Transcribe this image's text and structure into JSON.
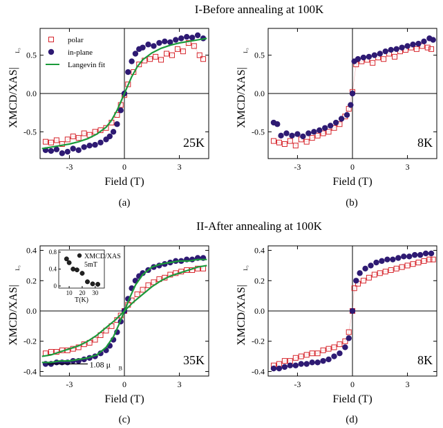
{
  "sections": [
    {
      "title": "I-Before annealing at 100K"
    },
    {
      "title": "II-After annealing at 100K"
    }
  ],
  "colors": {
    "polar": "#d6232a",
    "inplane": "#2e1a73",
    "fit": "#1a9a3a",
    "axis": "#000000"
  },
  "chart_data": [
    {
      "type": "scatter",
      "caption": "(a)",
      "temperature_label": "25K",
      "xlabel": "Field (T)",
      "ylabel": "XMCD/XAS|",
      "ylabel_sub": "L₃",
      "xlim": [
        -4.6,
        4.6
      ],
      "ylim": [
        -0.85,
        0.85
      ],
      "xticks": [
        -3,
        0,
        3
      ],
      "xtick_labels": [
        "-3",
        "0",
        "3"
      ],
      "yticks": [
        -0.5,
        0.0,
        0.5
      ],
      "ytick_labels": [
        "-0.5",
        "0.0",
        "0.5"
      ],
      "legend": {
        "position": "top-left",
        "entries": [
          "polar",
          "in-plane",
          "Langevin fit"
        ]
      },
      "series": [
        {
          "name": "polar",
          "marker": "open-square",
          "color": "#d6232a",
          "x": [
            -4.3,
            -4.0,
            -3.7,
            -3.4,
            -3.1,
            -2.8,
            -2.5,
            -2.2,
            -1.9,
            -1.6,
            -1.3,
            -1.0,
            -0.7,
            -0.4,
            -0.2,
            0.0,
            0.2,
            0.5,
            0.8,
            1.1,
            1.4,
            1.7,
            2.0,
            2.3,
            2.6,
            2.9,
            3.2,
            3.5,
            3.8,
            4.1,
            4.3
          ],
          "y": [
            -0.63,
            -0.64,
            -0.61,
            -0.66,
            -0.6,
            -0.56,
            -0.58,
            -0.52,
            -0.54,
            -0.5,
            -0.48,
            -0.45,
            -0.38,
            -0.28,
            -0.15,
            -0.02,
            0.12,
            0.28,
            0.38,
            0.43,
            0.45,
            0.48,
            0.44,
            0.52,
            0.5,
            0.58,
            0.55,
            0.66,
            0.62,
            0.5,
            0.45
          ]
        },
        {
          "name": "in-plane",
          "marker": "filled-circle",
          "color": "#2e1a73",
          "x": [
            -4.3,
            -4.0,
            -3.7,
            -3.4,
            -3.1,
            -2.8,
            -2.5,
            -2.2,
            -1.9,
            -1.6,
            -1.3,
            -1.0,
            -0.8,
            -0.6,
            -0.4,
            -0.2,
            0.0,
            0.2,
            0.4,
            0.6,
            0.8,
            1.0,
            1.3,
            1.6,
            1.9,
            2.2,
            2.5,
            2.8,
            3.1,
            3.4,
            3.7,
            4.0,
            4.3
          ],
          "y": [
            -0.74,
            -0.75,
            -0.73,
            -0.78,
            -0.76,
            -0.72,
            -0.74,
            -0.7,
            -0.68,
            -0.67,
            -0.64,
            -0.6,
            -0.56,
            -0.5,
            -0.4,
            -0.22,
            0.0,
            0.28,
            0.42,
            0.52,
            0.58,
            0.6,
            0.64,
            0.62,
            0.66,
            0.68,
            0.67,
            0.7,
            0.72,
            0.74,
            0.73,
            0.76,
            0.72
          ]
        },
        {
          "name": "Langevin fit",
          "marker": "line",
          "color": "#1a9a3a",
          "x": [
            -4.5,
            -4.0,
            -3.5,
            -3.0,
            -2.5,
            -2.0,
            -1.5,
            -1.0,
            -0.7,
            -0.4,
            -0.2,
            0.0,
            0.2,
            0.4,
            0.7,
            1.0,
            1.5,
            2.0,
            2.5,
            3.0,
            3.5,
            4.0,
            4.5
          ],
          "y": [
            -0.72,
            -0.7,
            -0.68,
            -0.66,
            -0.63,
            -0.59,
            -0.53,
            -0.44,
            -0.35,
            -0.22,
            -0.11,
            0.0,
            0.11,
            0.22,
            0.35,
            0.44,
            0.53,
            0.59,
            0.63,
            0.66,
            0.68,
            0.7,
            0.72
          ]
        }
      ]
    },
    {
      "type": "scatter",
      "caption": "(b)",
      "temperature_label": "8K",
      "xlabel": "Field (T)",
      "ylabel": "XMCD/XAS|",
      "ylabel_sub": "L₃",
      "xlim": [
        -4.6,
        4.6
      ],
      "ylim": [
        -0.85,
        0.85
      ],
      "xticks": [
        -3,
        0,
        3
      ],
      "xtick_labels": [
        "-3",
        "0",
        "3"
      ],
      "yticks": [
        -0.5,
        0.0,
        0.5
      ],
      "ytick_labels": [
        "-0.5",
        "0.0",
        "0.5"
      ],
      "series": [
        {
          "name": "polar",
          "marker": "open-square",
          "color": "#d6232a",
          "x": [
            -4.3,
            -4.0,
            -3.7,
            -3.4,
            -3.1,
            -2.8,
            -2.5,
            -2.2,
            -1.9,
            -1.6,
            -1.3,
            -1.0,
            -0.7,
            -0.4,
            -0.2,
            0.0,
            0.2,
            0.5,
            0.8,
            1.1,
            1.4,
            1.7,
            2.0,
            2.3,
            2.6,
            2.9,
            3.2,
            3.5,
            3.8,
            4.1,
            4.3
          ],
          "y": [
            -0.62,
            -0.64,
            -0.66,
            -0.62,
            -0.68,
            -0.6,
            -0.63,
            -0.58,
            -0.55,
            -0.52,
            -0.5,
            -0.45,
            -0.4,
            -0.3,
            -0.2,
            0.02,
            0.38,
            0.42,
            0.44,
            0.4,
            0.47,
            0.45,
            0.52,
            0.48,
            0.55,
            0.57,
            0.6,
            0.58,
            0.62,
            0.6,
            0.58
          ]
        },
        {
          "name": "in-plane",
          "marker": "filled-circle",
          "color": "#2e1a73",
          "x": [
            -4.3,
            -4.1,
            -3.9,
            -3.6,
            -3.3,
            -3.0,
            -2.7,
            -2.4,
            -2.1,
            -1.8,
            -1.5,
            -1.2,
            -0.9,
            -0.6,
            -0.3,
            -0.1,
            0.0,
            0.1,
            0.3,
            0.6,
            0.9,
            1.2,
            1.5,
            1.8,
            2.1,
            2.4,
            2.7,
            3.0,
            3.3,
            3.6,
            3.9,
            4.2,
            4.4
          ],
          "y": [
            -0.38,
            -0.4,
            -0.55,
            -0.52,
            -0.55,
            -0.53,
            -0.56,
            -0.52,
            -0.5,
            -0.48,
            -0.45,
            -0.42,
            -0.38,
            -0.33,
            -0.28,
            -0.15,
            0.0,
            0.42,
            0.45,
            0.47,
            0.48,
            0.5,
            0.52,
            0.55,
            0.57,
            0.58,
            0.6,
            0.62,
            0.64,
            0.65,
            0.68,
            0.72,
            0.7
          ]
        }
      ]
    },
    {
      "type": "scatter",
      "caption": "(c)",
      "temperature_label": "35K",
      "annotation": "1.08 μ",
      "annotation_sub": "B",
      "xlabel": "Field (T)",
      "ylabel": "XMCD/XAS|",
      "ylabel_sub": "L₃",
      "xlim": [
        -4.6,
        4.6
      ],
      "ylim": [
        -0.43,
        0.43
      ],
      "xticks": [
        -3,
        0,
        3
      ],
      "xtick_labels": [
        "-3",
        "0",
        "3"
      ],
      "yticks": [
        -0.4,
        -0.2,
        0.0,
        0.2,
        0.4
      ],
      "ytick_labels": [
        "-0.4",
        "-0.2",
        "0.0",
        "0.2",
        "0.4"
      ],
      "series": [
        {
          "name": "polar",
          "marker": "open-square",
          "color": "#d6232a",
          "x": [
            -4.3,
            -4.0,
            -3.7,
            -3.4,
            -3.1,
            -2.8,
            -2.5,
            -2.2,
            -1.9,
            -1.6,
            -1.3,
            -1.0,
            -0.7,
            -0.4,
            -0.2,
            0.0,
            0.2,
            0.4,
            0.7,
            1.0,
            1.3,
            1.6,
            1.9,
            2.2,
            2.5,
            2.8,
            3.1,
            3.4,
            3.7,
            4.0,
            4.3
          ],
          "y": [
            -0.28,
            -0.27,
            -0.27,
            -0.26,
            -0.26,
            -0.25,
            -0.24,
            -0.22,
            -0.21,
            -0.19,
            -0.16,
            -0.13,
            -0.1,
            -0.06,
            -0.03,
            0.0,
            0.04,
            0.07,
            0.11,
            0.14,
            0.17,
            0.19,
            0.21,
            0.22,
            0.24,
            0.25,
            0.26,
            0.27,
            0.27,
            0.28,
            0.28
          ]
        },
        {
          "name": "in-plane",
          "marker": "filled-circle",
          "color": "#2e1a73",
          "x": [
            -4.3,
            -4.0,
            -3.7,
            -3.4,
            -3.1,
            -2.8,
            -2.5,
            -2.2,
            -1.9,
            -1.6,
            -1.3,
            -1.0,
            -0.8,
            -0.6,
            -0.4,
            -0.2,
            0.0,
            0.2,
            0.4,
            0.6,
            0.8,
            1.0,
            1.3,
            1.6,
            1.9,
            2.2,
            2.5,
            2.8,
            3.1,
            3.4,
            3.7,
            4.0,
            4.3
          ],
          "y": [
            -0.35,
            -0.35,
            -0.34,
            -0.34,
            -0.34,
            -0.33,
            -0.33,
            -0.32,
            -0.31,
            -0.3,
            -0.28,
            -0.26,
            -0.23,
            -0.19,
            -0.14,
            -0.07,
            0.0,
            0.08,
            0.15,
            0.2,
            0.23,
            0.25,
            0.27,
            0.29,
            0.3,
            0.31,
            0.32,
            0.33,
            0.33,
            0.34,
            0.34,
            0.35,
            0.35
          ]
        },
        {
          "name": "fit-1",
          "marker": "line",
          "color": "#1a9a3a",
          "x": [
            -4.5,
            -4.0,
            -3.5,
            -3.0,
            -2.5,
            -2.0,
            -1.5,
            -1.0,
            -0.6,
            -0.3,
            0.0,
            0.3,
            0.6,
            1.0,
            1.5,
            2.0,
            2.5,
            3.0,
            3.5,
            4.0,
            4.5
          ],
          "y": [
            -0.34,
            -0.34,
            -0.33,
            -0.33,
            -0.32,
            -0.31,
            -0.29,
            -0.24,
            -0.17,
            -0.09,
            0.0,
            0.09,
            0.17,
            0.24,
            0.29,
            0.31,
            0.32,
            0.33,
            0.33,
            0.34,
            0.34
          ]
        },
        {
          "name": "fit-2",
          "marker": "line",
          "color": "#1a9a3a",
          "x": [
            -4.5,
            -4.0,
            -3.5,
            -3.0,
            -2.5,
            -2.0,
            -1.5,
            -1.0,
            -0.5,
            0.0,
            0.5,
            1.0,
            1.5,
            2.0,
            2.5,
            3.0,
            3.5,
            4.0,
            4.5
          ],
          "y": [
            -0.3,
            -0.29,
            -0.27,
            -0.25,
            -0.23,
            -0.2,
            -0.16,
            -0.11,
            -0.06,
            0.0,
            0.06,
            0.11,
            0.16,
            0.2,
            0.23,
            0.25,
            0.27,
            0.29,
            0.3
          ]
        }
      ],
      "inset": {
        "type": "scatter",
        "legend_line1": "XMCD/XAS",
        "legend_line2": "5mT",
        "xlabel": "T(K)",
        "xlim": [
          2,
          37
        ],
        "ylim": [
          -0.05,
          0.85
        ],
        "xticks": [
          10,
          20,
          30
        ],
        "xtick_labels": [
          "10",
          "20",
          "30"
        ],
        "yticks": [
          0.0,
          0.4,
          0.8
        ],
        "ytick_labels": [
          "0",
          "0.4",
          "0.8"
        ],
        "x": [
          8,
          10,
          13,
          16,
          20,
          24,
          28,
          32
        ],
        "y": [
          0.64,
          0.55,
          0.4,
          0.38,
          0.3,
          0.1,
          0.05,
          0.04
        ]
      }
    },
    {
      "type": "scatter",
      "caption": "(d)",
      "temperature_label": "8K",
      "xlabel": "Field (T)",
      "ylabel": "XMCD/XAS|",
      "ylabel_sub": "L₃",
      "xlim": [
        -4.6,
        4.6
      ],
      "ylim": [
        -0.43,
        0.43
      ],
      "xticks": [
        -3,
        0,
        3
      ],
      "xtick_labels": [
        "-3",
        "0",
        "3"
      ],
      "yticks": [
        -0.4,
        -0.2,
        0.0,
        0.2,
        0.4
      ],
      "ytick_labels": [
        "-0.4",
        "-0.2",
        "0.0",
        "0.2",
        "0.4"
      ],
      "series": [
        {
          "name": "polar",
          "marker": "open-square",
          "color": "#d6232a",
          "x": [
            -4.3,
            -4.0,
            -3.7,
            -3.4,
            -3.1,
            -2.8,
            -2.5,
            -2.2,
            -1.9,
            -1.6,
            -1.3,
            -1.0,
            -0.7,
            -0.4,
            -0.2,
            0.0,
            0.1,
            0.3,
            0.6,
            0.9,
            1.2,
            1.5,
            1.8,
            2.1,
            2.4,
            2.7,
            3.0,
            3.3,
            3.6,
            3.9,
            4.2,
            4.4
          ],
          "y": [
            -0.36,
            -0.35,
            -0.33,
            -0.33,
            -0.31,
            -0.3,
            -0.29,
            -0.28,
            -0.28,
            -0.26,
            -0.25,
            -0.24,
            -0.22,
            -0.2,
            -0.14,
            0.0,
            0.15,
            0.18,
            0.2,
            0.22,
            0.24,
            0.25,
            0.26,
            0.27,
            0.28,
            0.29,
            0.3,
            0.31,
            0.32,
            0.33,
            0.34,
            0.34
          ]
        },
        {
          "name": "in-plane",
          "marker": "filled-circle",
          "color": "#2e1a73",
          "x": [
            -4.3,
            -4.0,
            -3.7,
            -3.4,
            -3.1,
            -2.8,
            -2.5,
            -2.2,
            -1.9,
            -1.6,
            -1.3,
            -1.0,
            -0.7,
            -0.4,
            -0.2,
            0.0,
            0.2,
            0.4,
            0.7,
            1.0,
            1.3,
            1.6,
            1.9,
            2.2,
            2.5,
            2.8,
            3.1,
            3.4,
            3.7,
            4.0,
            4.3
          ],
          "y": [
            -0.38,
            -0.38,
            -0.37,
            -0.36,
            -0.36,
            -0.35,
            -0.35,
            -0.34,
            -0.34,
            -0.33,
            -0.32,
            -0.3,
            -0.28,
            -0.24,
            -0.18,
            0.0,
            0.2,
            0.25,
            0.28,
            0.3,
            0.32,
            0.33,
            0.34,
            0.34,
            0.35,
            0.36,
            0.36,
            0.37,
            0.37,
            0.38,
            0.38
          ]
        }
      ]
    }
  ]
}
